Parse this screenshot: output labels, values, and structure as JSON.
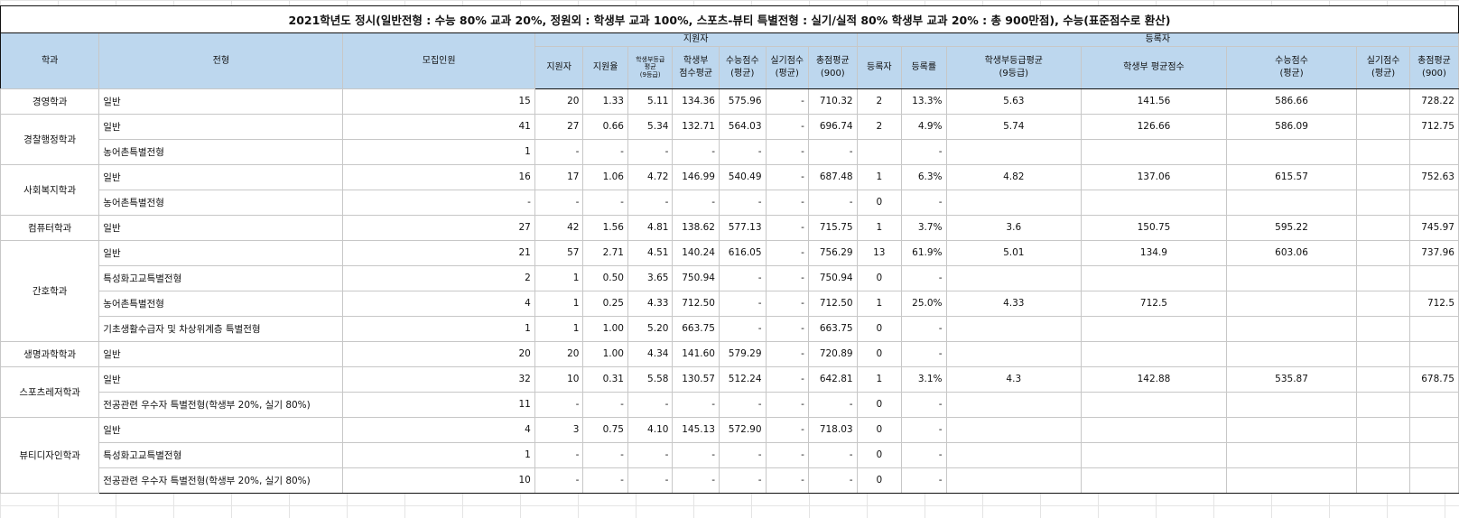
{
  "title": "2021학년도 정시(일반전형 : 수능 80% 교과 20%, 정원외 : 학생부 교과 100%, 스포츠-뷰티 특별전형 : 실기/실적 80% 학생부 교과 20% : 총 900만점), 수능(표준점수로 환산)",
  "headers": {
    "dept": "학과",
    "track": "전형",
    "quota": "모집인원",
    "applicants_group": "지원자",
    "registrants_group": "등록자",
    "app_count": "지원자",
    "app_rate": "지원율",
    "app_grade_line1": "학생부등급",
    "app_grade_line2": "평균",
    "app_grade_line3": "(9등급)",
    "app_school_line1": "학생부",
    "app_school_line2": "점수평균",
    "app_csat_line1": "수능점수",
    "app_csat_line2": "(평균)",
    "app_practical_line1": "실기점수",
    "app_practical_line2": "(평균)",
    "app_total_line1": "총점평균",
    "app_total_line2": "(900)",
    "reg_count": "등록자",
    "reg_rate": "등록률",
    "reg_grade_line1": "학생부등급평균",
    "reg_grade_line2": "(9등급)",
    "reg_school": "학생부 평균점수",
    "reg_csat_line1": "수능점수",
    "reg_csat_line2": "(평균)",
    "reg_practical_line1": "실기점수",
    "reg_practical_line2": "(평균)",
    "reg_total_line1": "총점평균",
    "reg_total_line2": "(900)"
  },
  "groups": [
    {
      "dept": "경영학과",
      "rows": [
        {
          "track": "일반",
          "quota": "15",
          "app_count": "20",
          "app_rate": "1.33",
          "app_grade": "5.11",
          "app_school": "134.36",
          "app_csat": "575.96",
          "app_practical": "-",
          "app_total": "710.32",
          "reg_count": "2",
          "reg_rate": "13.3%",
          "reg_grade": "5.63",
          "reg_school": "141.56",
          "reg_csat": "586.66",
          "reg_practical": "",
          "reg_total": "728.22"
        }
      ]
    },
    {
      "dept": "경찰행정학과",
      "rows": [
        {
          "track": "일반",
          "quota": "41",
          "app_count": "27",
          "app_rate": "0.66",
          "app_grade": "5.34",
          "app_school": "132.71",
          "app_csat": "564.03",
          "app_practical": "-",
          "app_total": "696.74",
          "reg_count": "2",
          "reg_rate": "4.9%",
          "reg_grade": "5.74",
          "reg_school": "126.66",
          "reg_csat": "586.09",
          "reg_practical": "",
          "reg_total": "712.75"
        },
        {
          "track": "농어촌특별전형",
          "quota": "1",
          "app_count": "-",
          "app_rate": "-",
          "app_grade": "-",
          "app_school": "-",
          "app_csat": "-",
          "app_practical": "-",
          "app_total": "-",
          "reg_count": "",
          "reg_rate": "-",
          "reg_grade": "",
          "reg_school": "",
          "reg_csat": "",
          "reg_practical": "",
          "reg_total": ""
        }
      ]
    },
    {
      "dept": "사회복지학과",
      "rows": [
        {
          "track": "일반",
          "quota": "16",
          "app_count": "17",
          "app_rate": "1.06",
          "app_grade": "4.72",
          "app_school": "146.99",
          "app_csat": "540.49",
          "app_practical": "-",
          "app_total": "687.48",
          "reg_count": "1",
          "reg_rate": "6.3%",
          "reg_grade": "4.82",
          "reg_school": "137.06",
          "reg_csat": "615.57",
          "reg_practical": "",
          "reg_total": "752.63"
        },
        {
          "track": "농어촌특별전형",
          "quota": "-",
          "app_count": "-",
          "app_rate": "-",
          "app_grade": "-",
          "app_school": "-",
          "app_csat": "-",
          "app_practical": "-",
          "app_total": "-",
          "reg_count": "0",
          "reg_rate": "-",
          "reg_grade": "",
          "reg_school": "",
          "reg_csat": "",
          "reg_practical": "",
          "reg_total": ""
        }
      ]
    },
    {
      "dept": "컴퓨터학과",
      "rows": [
        {
          "track": "일반",
          "quota": "27",
          "app_count": "42",
          "app_rate": "1.56",
          "app_grade": "4.81",
          "app_school": "138.62",
          "app_csat": "577.13",
          "app_practical": "-",
          "app_total": "715.75",
          "reg_count": "1",
          "reg_rate": "3.7%",
          "reg_grade": "3.6",
          "reg_school": "150.75",
          "reg_csat": "595.22",
          "reg_practical": "",
          "reg_total": "745.97"
        }
      ]
    },
    {
      "dept": "간호학과",
      "rows": [
        {
          "track": "일반",
          "quota": "21",
          "app_count": "57",
          "app_rate": "2.71",
          "app_grade": "4.51",
          "app_school": "140.24",
          "app_csat": "616.05",
          "app_practical": "-",
          "app_total": "756.29",
          "reg_count": "13",
          "reg_rate": "61.9%",
          "reg_grade": "5.01",
          "reg_school": "134.9",
          "reg_csat": "603.06",
          "reg_practical": "",
          "reg_total": "737.96"
        },
        {
          "track": "특성화고교특별전형",
          "quota": "2",
          "app_count": "1",
          "app_rate": "0.50",
          "app_grade": "3.65",
          "app_school": "750.94",
          "app_csat": "-",
          "app_practical": "-",
          "app_total": "750.94",
          "reg_count": "0",
          "reg_rate": "-",
          "reg_grade": "",
          "reg_school": "",
          "reg_csat": "",
          "reg_practical": "",
          "reg_total": ""
        },
        {
          "track": "농어촌특별전형",
          "quota": "4",
          "app_count": "1",
          "app_rate": "0.25",
          "app_grade": "4.33",
          "app_school": "712.50",
          "app_csat": "-",
          "app_practical": "-",
          "app_total": "712.50",
          "reg_count": "1",
          "reg_rate": "25.0%",
          "reg_grade": "4.33",
          "reg_school": "712.5",
          "reg_csat": "",
          "reg_practical": "",
          "reg_total": "712.5"
        },
        {
          "track": "기초생활수급자 및 차상위계층 특별전형",
          "quota": "1",
          "app_count": "1",
          "app_rate": "1.00",
          "app_grade": "5.20",
          "app_school": "663.75",
          "app_csat": "-",
          "app_practical": "-",
          "app_total": "663.75",
          "reg_count": "0",
          "reg_rate": "-",
          "reg_grade": "",
          "reg_school": "",
          "reg_csat": "",
          "reg_practical": "",
          "reg_total": ""
        }
      ]
    },
    {
      "dept": "생명과학학과",
      "rows": [
        {
          "track": "일반",
          "quota": "20",
          "app_count": "20",
          "app_rate": "1.00",
          "app_grade": "4.34",
          "app_school": "141.60",
          "app_csat": "579.29",
          "app_practical": "-",
          "app_total": "720.89",
          "reg_count": "0",
          "reg_rate": "-",
          "reg_grade": "",
          "reg_school": "",
          "reg_csat": "",
          "reg_practical": "",
          "reg_total": ""
        }
      ]
    },
    {
      "dept": "스포츠레저학과",
      "rows": [
        {
          "track": "일반",
          "quota": "32",
          "app_count": "10",
          "app_rate": "0.31",
          "app_grade": "5.58",
          "app_school": "130.57",
          "app_csat": "512.24",
          "app_practical": "-",
          "app_total": "642.81",
          "reg_count": "1",
          "reg_rate": "3.1%",
          "reg_grade": "4.3",
          "reg_school": "142.88",
          "reg_csat": "535.87",
          "reg_practical": "",
          "reg_total": "678.75"
        },
        {
          "track": "전공관련 우수자 특별전형(학생부 20%, 실기 80%)",
          "quota": "11",
          "app_count": "-",
          "app_rate": "-",
          "app_grade": "-",
          "app_school": "-",
          "app_csat": "-",
          "app_practical": "-",
          "app_total": "-",
          "reg_count": "0",
          "reg_rate": "-",
          "reg_grade": "",
          "reg_school": "",
          "reg_csat": "",
          "reg_practical": "",
          "reg_total": ""
        }
      ]
    },
    {
      "dept": "뷰티디자인학과",
      "rows": [
        {
          "track": "일반",
          "quota": "4",
          "app_count": "3",
          "app_rate": "0.75",
          "app_grade": "4.10",
          "app_school": "145.13",
          "app_csat": "572.90",
          "app_practical": "-",
          "app_total": "718.03",
          "reg_count": "0",
          "reg_rate": "-",
          "reg_grade": "",
          "reg_school": "",
          "reg_csat": "",
          "reg_practical": "",
          "reg_total": ""
        },
        {
          "track": "특성화고교특별전형",
          "quota": "1",
          "app_count": "-",
          "app_rate": "-",
          "app_grade": "-",
          "app_school": "-",
          "app_csat": "-",
          "app_practical": "-",
          "app_total": "-",
          "reg_count": "0",
          "reg_rate": "-",
          "reg_grade": "",
          "reg_school": "",
          "reg_csat": "",
          "reg_practical": "",
          "reg_total": ""
        },
        {
          "track": "전공관련 우수자 특별전형(학생부 20%, 실기 80%)",
          "quota": "10",
          "app_count": "-",
          "app_rate": "-",
          "app_grade": "-",
          "app_school": "-",
          "app_csat": "-",
          "app_practical": "-",
          "app_total": "-",
          "reg_count": "0",
          "reg_rate": "-",
          "reg_grade": "",
          "reg_school": "",
          "reg_csat": "",
          "reg_practical": "",
          "reg_total": ""
        }
      ]
    }
  ]
}
